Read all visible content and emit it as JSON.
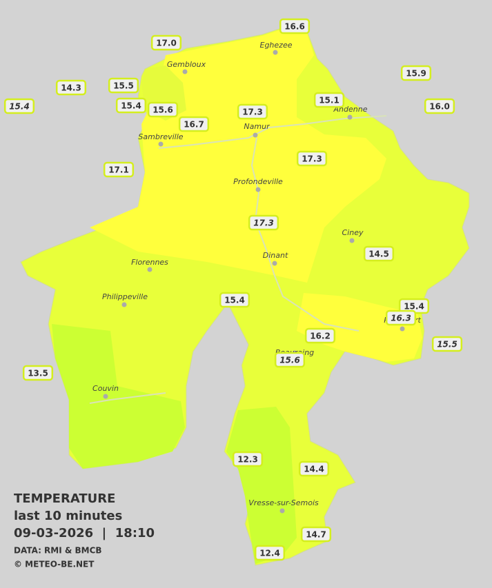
{
  "legend": {
    "title": "TEMPERATURE",
    "subtitle": "last 10 minutes",
    "timestamp": "09-03-2026  |  18:10",
    "source": "DATA: RMI & BMCB",
    "copyright": "© METEO-BE.NET"
  },
  "cities": [
    "Eghezee",
    "Gembloux",
    "Andenne",
    "Namur",
    "Sambreville",
    "Profondeville",
    "Ciney",
    "Dinant",
    "Florennes",
    "Philippeville",
    "Beauraing",
    "Rochefort",
    "Couvin",
    "Vresse-sur-Semois"
  ],
  "stations": [
    "16.6",
    "17.0",
    "15.9",
    "14.3",
    "15.5",
    "15.4",
    "15.4",
    "15.6",
    "15.1",
    "16.0",
    "17.3",
    "16.7",
    "17.3",
    "17.1",
    "17.3",
    "14.5",
    "15.4",
    "15.4",
    "16.3",
    "16.2",
    "15.5",
    "15.6",
    "13.5",
    "12.3",
    "14.4",
    "14.7",
    "12.4"
  ]
}
